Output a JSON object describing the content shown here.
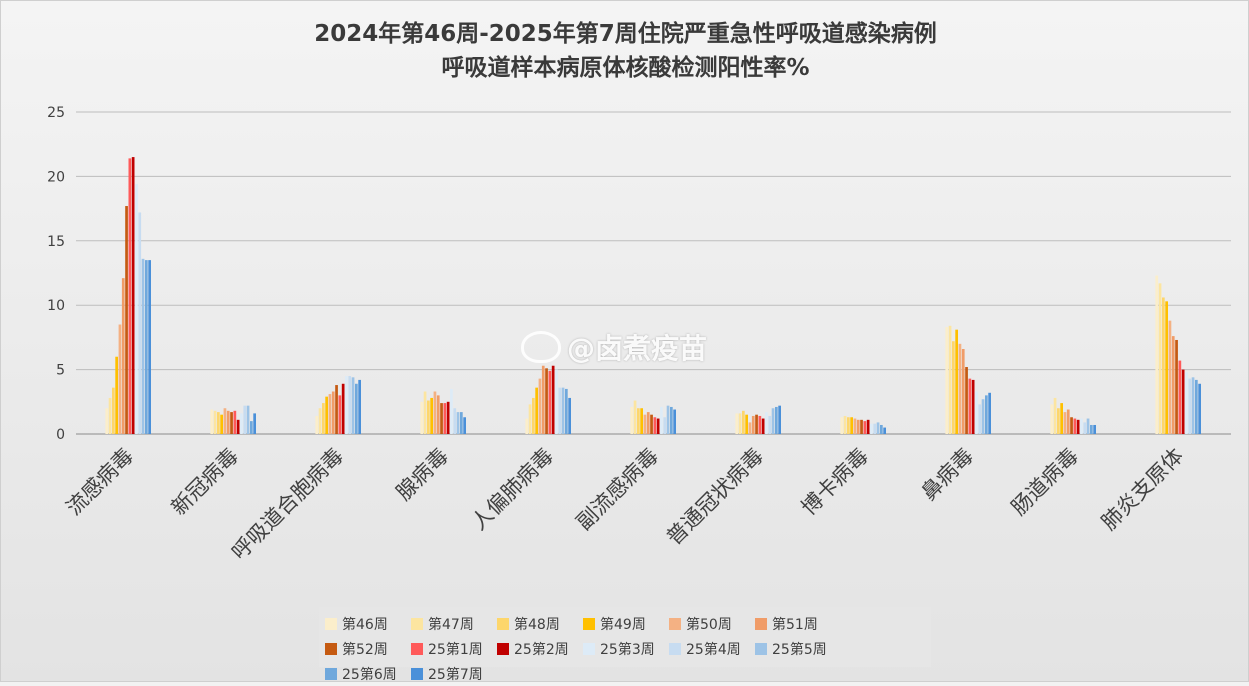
{
  "chart_data": {
    "type": "bar",
    "title_lines": [
      "2024年第46周-2025年第7周住院严重急性呼吸道感染病例",
      "呼吸道样本病原体核酸检测阳性率%"
    ],
    "categories": [
      "流感病毒",
      "新冠病毒",
      "呼吸道合胞病毒",
      "腺病毒",
      "人偏肺病毒",
      "副流感病毒",
      "普通冠状病毒",
      "博卡病毒",
      "鼻病毒",
      "肠道病毒",
      "肺炎支原体"
    ],
    "ylim": [
      0,
      25
    ],
    "yticks": [
      0,
      5,
      10,
      15,
      20,
      25
    ],
    "grid": true,
    "legend_position": "bottom",
    "series": [
      {
        "name": "第46周",
        "color": "#fbeecb",
        "values": [
          2.0,
          1.9,
          1.4,
          2.5,
          1.2,
          2.1,
          1.6,
          1.3,
          8.3,
          2.3,
          12.3
        ]
      },
      {
        "name": "第47周",
        "color": "#fce5a0",
        "values": [
          2.8,
          1.8,
          2.0,
          3.3,
          2.3,
          2.6,
          1.6,
          1.4,
          8.4,
          2.8,
          11.7
        ]
      },
      {
        "name": "第48周",
        "color": "#fdd66b",
        "values": [
          3.6,
          1.7,
          2.4,
          2.6,
          2.8,
          2.0,
          1.8,
          1.3,
          7.2,
          2.0,
          10.6
        ]
      },
      {
        "name": "第49周",
        "color": "#ffc000",
        "values": [
          6.0,
          1.5,
          2.9,
          2.8,
          3.6,
          2.0,
          1.5,
          1.3,
          8.1,
          2.4,
          10.3
        ]
      },
      {
        "name": "第50周",
        "color": "#f4b183",
        "values": [
          8.5,
          2.0,
          3.1,
          3.3,
          4.3,
          1.5,
          0.9,
          1.2,
          7.0,
          1.7,
          8.8
        ]
      },
      {
        "name": "第51周",
        "color": "#f09c68",
        "values": [
          12.1,
          1.8,
          3.3,
          3.0,
          5.3,
          1.7,
          1.4,
          1.1,
          6.6,
          1.9,
          7.6
        ]
      },
      {
        "name": "第52周",
        "color": "#c55a11",
        "values": [
          17.7,
          1.7,
          3.8,
          2.4,
          5.1,
          1.5,
          1.5,
          1.1,
          5.2,
          1.3,
          7.3
        ]
      },
      {
        "name": "25第1周",
        "color": "#ff5a5a",
        "values": [
          21.4,
          1.8,
          3.0,
          2.4,
          4.9,
          1.3,
          1.4,
          1.0,
          4.3,
          1.2,
          5.7
        ]
      },
      {
        "name": "25第2周",
        "color": "#c00000",
        "values": [
          21.5,
          1.1,
          3.9,
          2.5,
          5.3,
          1.2,
          1.2,
          1.1,
          4.2,
          1.1,
          5.0
        ]
      },
      {
        "name": "25第3周",
        "color": "#ddebf7",
        "values": [
          19.4,
          1.6,
          4.5,
          3.5,
          5.0,
          2.1,
          1.7,
          0.8,
          3.3,
          1.2,
          4.8
        ]
      },
      {
        "name": "25第4周",
        "color": "#c7dcf1",
        "values": [
          17.2,
          2.2,
          4.5,
          2.0,
          3.6,
          1.3,
          1.4,
          0.8,
          2.3,
          0.9,
          4.3
        ]
      },
      {
        "name": "25第5周",
        "color": "#9dc3e6",
        "values": [
          13.6,
          2.2,
          4.4,
          1.7,
          3.6,
          2.2,
          2.0,
          0.9,
          2.7,
          1.2,
          4.4
        ]
      },
      {
        "name": "25第6周",
        "color": "#6fa8dc",
        "values": [
          13.5,
          1.0,
          3.9,
          1.7,
          3.5,
          2.1,
          2.1,
          0.7,
          3.0,
          0.7,
          4.2
        ]
      },
      {
        "name": "25第7周",
        "color": "#4a90d9",
        "values": [
          13.5,
          1.6,
          4.2,
          1.3,
          2.8,
          1.9,
          2.2,
          0.5,
          3.2,
          0.7,
          3.9
        ]
      }
    ]
  },
  "watermark": "@卤煮疫苗"
}
